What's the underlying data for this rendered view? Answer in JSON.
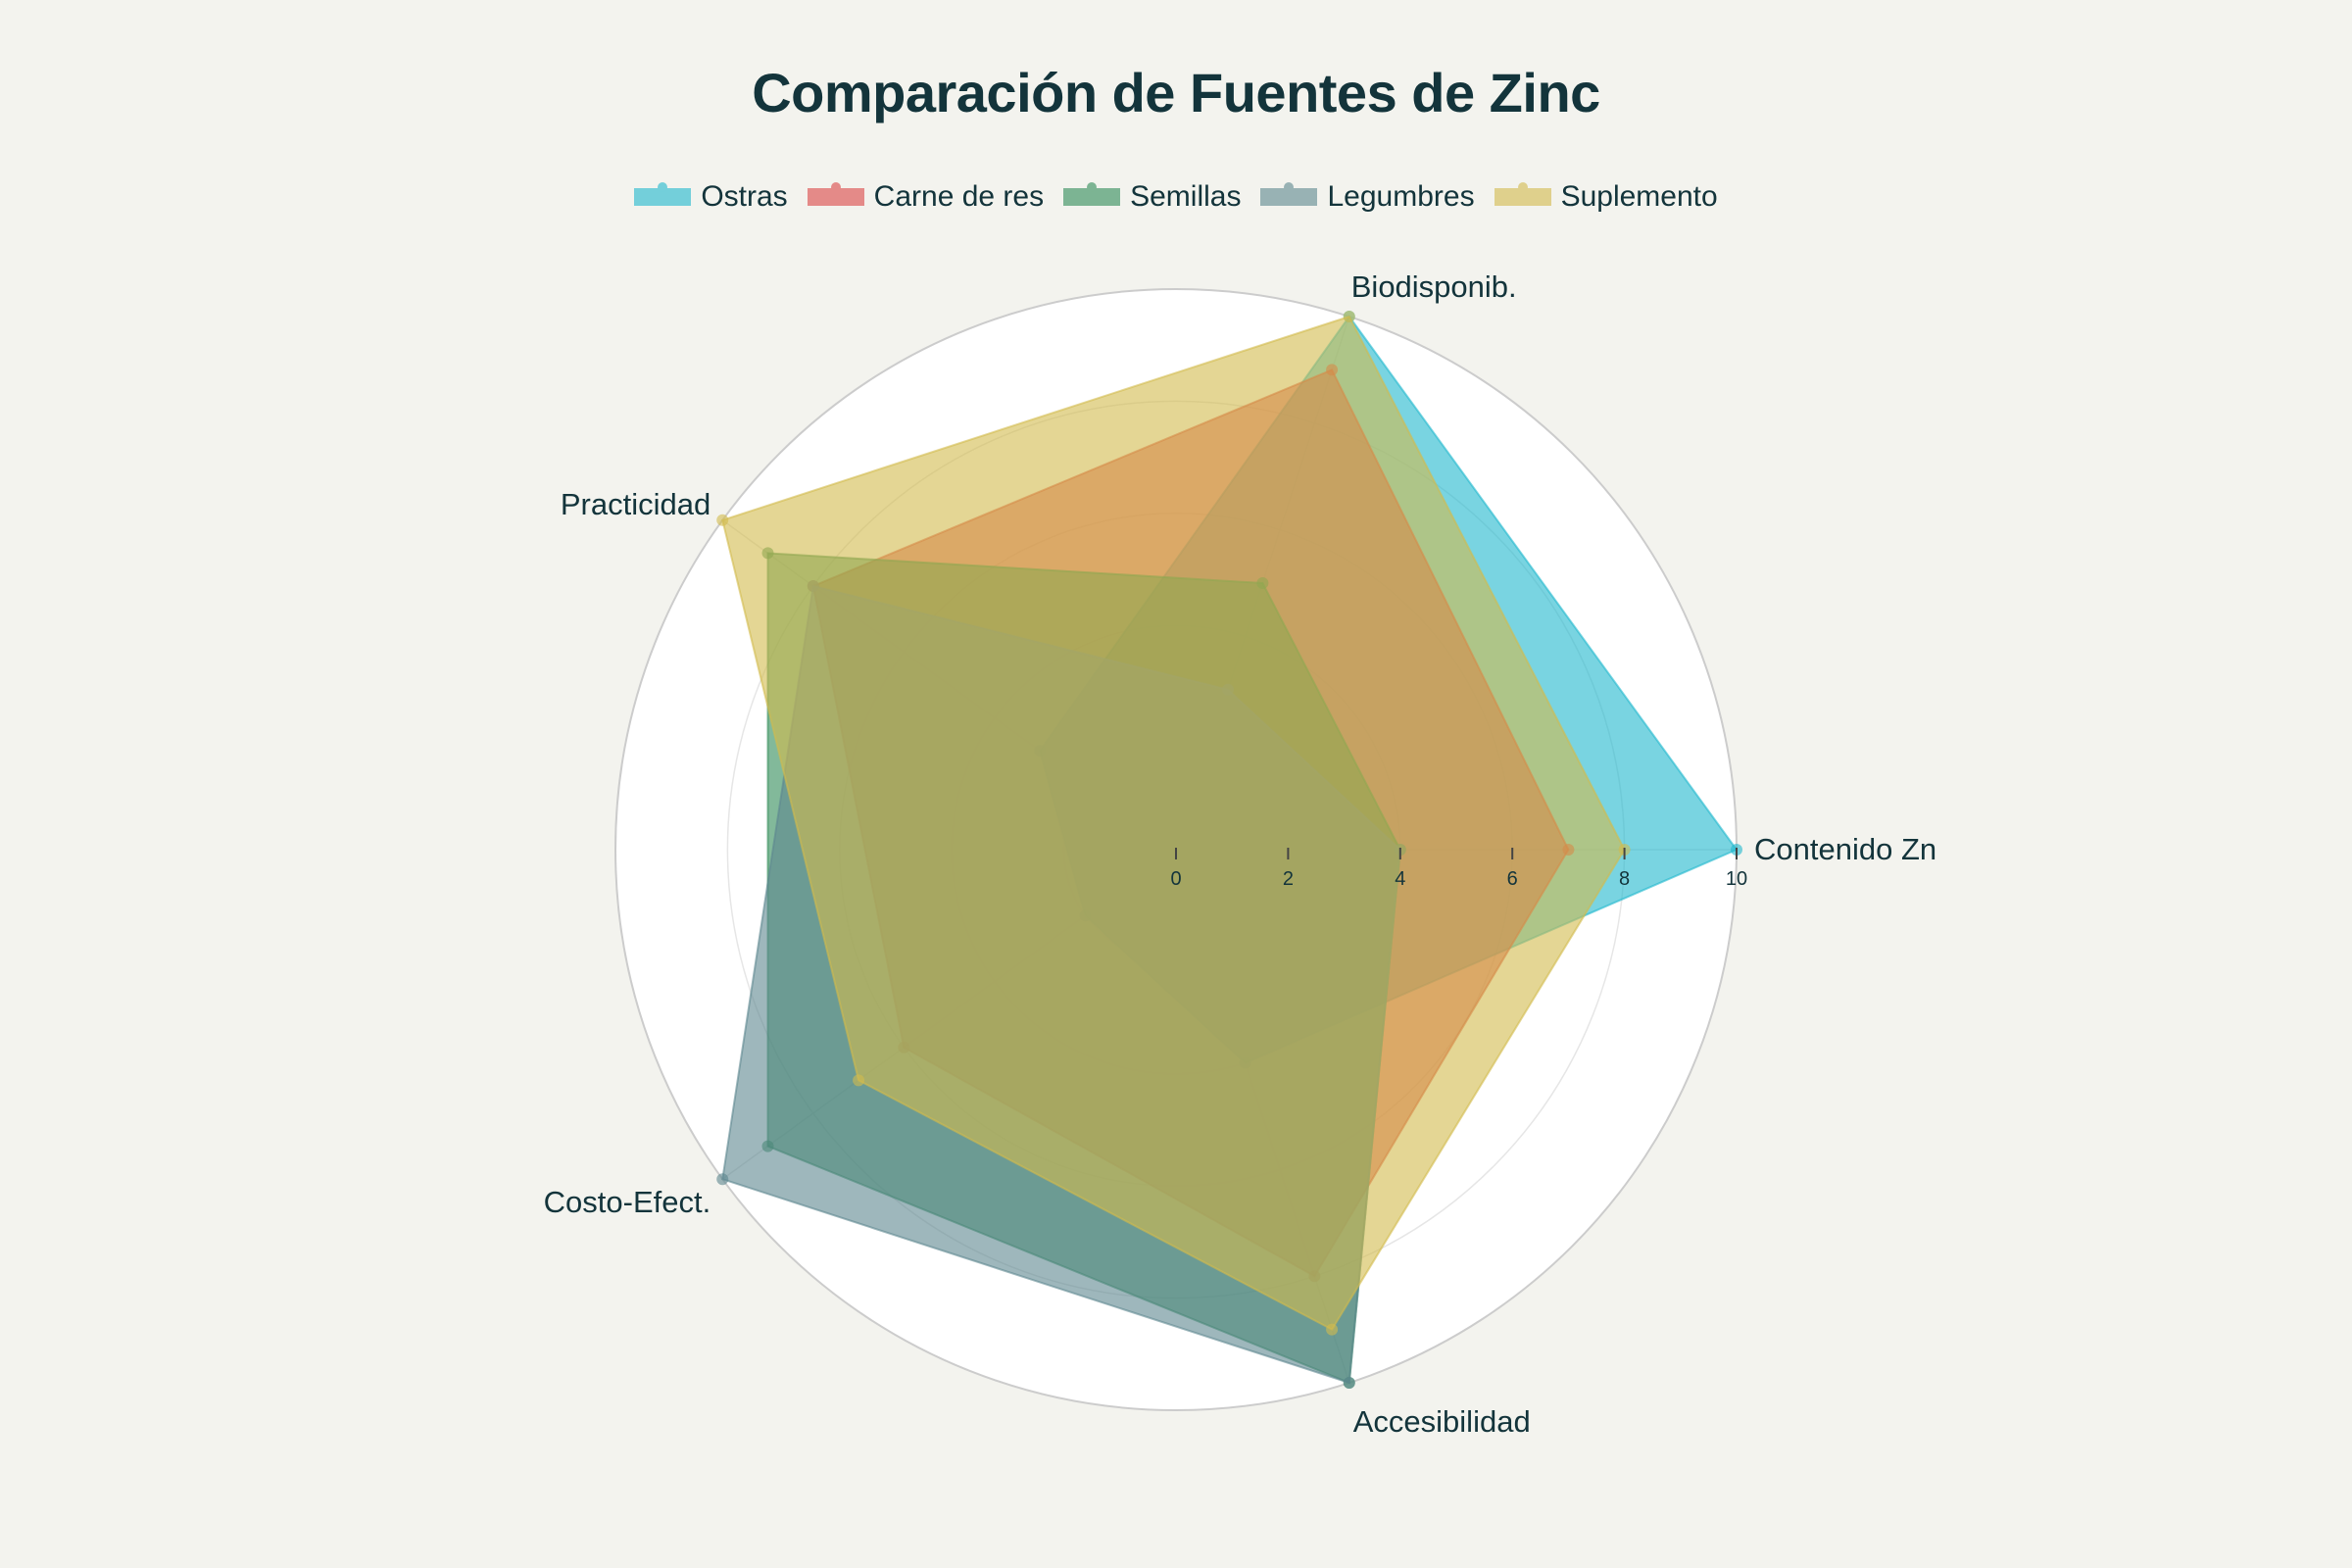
{
  "title": "Comparación de Fuentes de Zinc",
  "legend": [
    {
      "label": "Ostras",
      "color": "#1FB8CD"
    },
    {
      "label": "Carne de res",
      "color": "#DB4545"
    },
    {
      "label": "Semillas",
      "color": "#2E8B57"
    },
    {
      "label": "Legumbres",
      "color": "#5D878F"
    },
    {
      "label": "Suplemento",
      "color": "#D2BA4C"
    }
  ],
  "chart_data": {
    "type": "radar",
    "title": "Comparación de Fuentes de Zinc",
    "categories": [
      "Contenido Zn",
      "Biodisponib.",
      "Practicidad",
      "Costo-Efect.",
      "Accesibilidad"
    ],
    "series": [
      {
        "name": "Ostras",
        "color": "#1FB8CD",
        "values": [
          10,
          10,
          3,
          2,
          4
        ]
      },
      {
        "name": "Carne de res",
        "color": "#DB4545",
        "values": [
          7,
          9,
          8,
          6,
          8
        ]
      },
      {
        "name": "Semillas",
        "color": "#2E8B57",
        "values": [
          4,
          5,
          9,
          9,
          10
        ]
      },
      {
        "name": "Legumbres",
        "color": "#5D878F",
        "values": [
          4,
          3,
          8,
          10,
          10
        ]
      },
      {
        "name": "Suplemento",
        "color": "#D2BA4C",
        "values": [
          8,
          10,
          10,
          7,
          9
        ]
      }
    ],
    "radial_range": [
      0,
      10
    ],
    "radial_ticks": [
      "0",
      "2",
      "4",
      "6",
      "8",
      "10"
    ],
    "fill_opacity": 0.6,
    "grid": true,
    "legend_position": "top"
  }
}
